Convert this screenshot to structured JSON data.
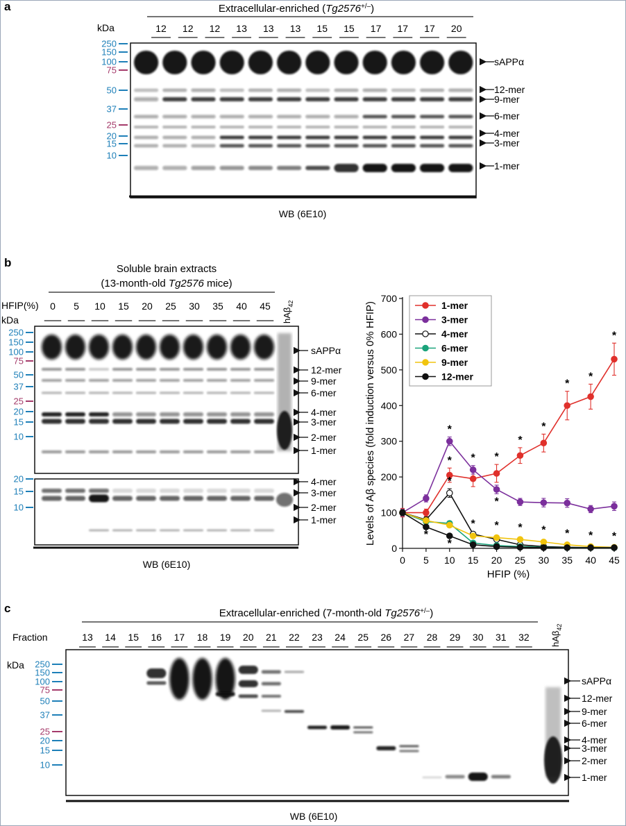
{
  "colors": {
    "marker_blue": "#1d7fb8",
    "marker_pink": "#a43a6a",
    "one_mer": "#e0302b",
    "three_mer": "#7b2f9c",
    "four_mer": "#ffffff",
    "six_mer": "#1aa37b",
    "nine_mer": "#f1c40f",
    "twelve_mer": "#111111"
  },
  "panel_a": {
    "letter": "a",
    "header_prefix": "Extracellular-enriched (",
    "header_italic": "Tg2576",
    "header_super": "+/–",
    "header_suffix": ")",
    "kda_label": "kDa",
    "lanes": [
      "12",
      "12",
      "12",
      "13",
      "13",
      "13",
      "15",
      "15",
      "17",
      "17",
      "17",
      "20"
    ],
    "markers": [
      {
        "label": "250",
        "color": "blue"
      },
      {
        "label": "150",
        "color": "blue"
      },
      {
        "label": "100",
        "color": "blue"
      },
      {
        "label": "75",
        "color": "pink"
      },
      {
        "label": "50",
        "color": "blue"
      },
      {
        "label": "37",
        "color": "blue"
      },
      {
        "label": "25",
        "color": "pink"
      },
      {
        "label": "20",
        "color": "blue"
      },
      {
        "label": "15",
        "color": "blue"
      },
      {
        "label": "10",
        "color": "blue"
      }
    ],
    "band_labels": [
      "sAPPα",
      "12-mer",
      "9-mer",
      "6-mer",
      "4-mer",
      "3-mer",
      "1-mer"
    ],
    "footer": "WB (6E10)"
  },
  "panel_b": {
    "letter": "b",
    "title_line1": "Soluble brain extracts",
    "title_line2_prefix": "(13-month-old ",
    "title_line2_italic": "Tg2576",
    "title_line2_suffix": " mice)",
    "hfip_label": "HFIP(%)",
    "kda_label": "kDa",
    "lanes": [
      "0",
      "5",
      "10",
      "15",
      "20",
      "25",
      "30",
      "35",
      "40",
      "45"
    ],
    "control_lane_base": "hAβ",
    "control_lane_sub": "42",
    "markers": [
      {
        "label": "250",
        "color": "blue"
      },
      {
        "label": "150",
        "color": "blue"
      },
      {
        "label": "100",
        "color": "blue"
      },
      {
        "label": "75",
        "color": "pink"
      },
      {
        "label": "50",
        "color": "blue"
      },
      {
        "label": "37",
        "color": "blue"
      },
      {
        "label": "25",
        "color": "pink"
      },
      {
        "label": "20",
        "color": "blue"
      },
      {
        "label": "15",
        "color": "blue"
      },
      {
        "label": "10",
        "color": "blue"
      }
    ],
    "lower_markers": [
      {
        "label": "20",
        "color": "blue"
      },
      {
        "label": "15",
        "color": "blue"
      },
      {
        "label": "10",
        "color": "blue"
      }
    ],
    "band_labels_upper": [
      "sAPPα",
      "12-mer",
      "9-mer",
      "6-mer",
      "4-mer",
      "3-mer",
      "2-mer",
      "1-mer"
    ],
    "band_labels_lower": [
      "4-mer",
      "3-mer",
      "2-mer",
      "1-mer"
    ],
    "footer": "WB (6E10)"
  },
  "chart_data": {
    "type": "line",
    "x": [
      0,
      5,
      10,
      15,
      20,
      25,
      30,
      35,
      40,
      45
    ],
    "xlabel": "HFIP (%)",
    "ylabel": "Levels of Aβ species (fold induction versus 0% HFIP)",
    "xlim": [
      0,
      45
    ],
    "ylim": [
      0,
      700
    ],
    "xticks": [
      "0",
      "5",
      "10",
      "15",
      "20",
      "25",
      "30",
      "35",
      "40",
      "45"
    ],
    "yticks": [
      "0",
      "100",
      "200",
      "300",
      "400",
      "500",
      "600",
      "700"
    ],
    "grid": false,
    "legend_position": "top-left",
    "series": [
      {
        "name": "1-mer",
        "color": "#e0302b",
        "filled": true,
        "values": [
          100,
          100,
          205,
          195,
          210,
          260,
          295,
          400,
          425,
          530
        ],
        "errors": [
          12,
          10,
          20,
          22,
          25,
          22,
          25,
          40,
          35,
          45
        ],
        "stars": [
          10,
          20,
          25,
          30,
          35,
          40,
          45
        ]
      },
      {
        "name": "3-mer",
        "color": "#7b2f9c",
        "filled": true,
        "values": [
          100,
          140,
          300,
          220,
          165,
          130,
          128,
          127,
          110,
          118
        ],
        "errors": [
          10,
          10,
          12,
          12,
          12,
          10,
          12,
          12,
          10,
          12
        ],
        "stars": [
          10,
          15,
          20
        ]
      },
      {
        "name": "4-mer",
        "color": "#ffffff",
        "filled": false,
        "values": [
          100,
          80,
          155,
          40,
          25,
          10,
          5,
          3,
          2,
          2
        ],
        "errors": [
          8,
          8,
          12,
          5,
          5,
          4,
          3,
          2,
          2,
          2
        ],
        "stars": [
          10
        ]
      },
      {
        "name": "6-mer",
        "color": "#1aa37b",
        "filled": true,
        "values": [
          100,
          75,
          70,
          15,
          8,
          5,
          3,
          2,
          2,
          2
        ],
        "errors": [
          8,
          6,
          6,
          4,
          3,
          3,
          2,
          2,
          2,
          2
        ],
        "stars": []
      },
      {
        "name": "9-mer",
        "color": "#f1c40f",
        "filled": true,
        "values": [
          100,
          78,
          65,
          35,
          30,
          25,
          18,
          10,
          5,
          3
        ],
        "errors": [
          8,
          6,
          6,
          5,
          5,
          4,
          4,
          3,
          2,
          2
        ],
        "stars": [
          15,
          20,
          25,
          30,
          35,
          40,
          45
        ]
      },
      {
        "name": "12-mer",
        "color": "#111111",
        "filled": true,
        "values": [
          100,
          60,
          35,
          10,
          5,
          3,
          2,
          2,
          2,
          2
        ],
        "errors": [
          8,
          6,
          5,
          3,
          2,
          2,
          2,
          2,
          2,
          2
        ],
        "stars": [
          5,
          10
        ]
      }
    ],
    "star_symbol": "*"
  },
  "panel_c": {
    "letter": "c",
    "header_prefix": "Extracellular-enriched (7-month-old ",
    "header_italic": "Tg2576",
    "header_super": "+/–",
    "header_suffix": ")",
    "fraction_label": "Fraction",
    "kda_label": "kDa",
    "lanes": [
      "13",
      "14",
      "15",
      "16",
      "17",
      "18",
      "19",
      "20",
      "21",
      "22",
      "23",
      "24",
      "25",
      "26",
      "27",
      "28",
      "29",
      "30",
      "31",
      "32"
    ],
    "control_lane_base": "hAβ",
    "control_lane_sub": "42",
    "markers": [
      {
        "label": "250",
        "color": "blue"
      },
      {
        "label": "150",
        "color": "blue"
      },
      {
        "label": "100",
        "color": "blue"
      },
      {
        "label": "75",
        "color": "pink"
      },
      {
        "label": "50",
        "color": "blue"
      },
      {
        "label": "37",
        "color": "blue"
      },
      {
        "label": "25",
        "color": "pink"
      },
      {
        "label": "20",
        "color": "blue"
      },
      {
        "label": "15",
        "color": "blue"
      },
      {
        "label": "10",
        "color": "blue"
      }
    ],
    "band_labels": [
      "sAPPα",
      "12-mer",
      "9-mer",
      "6-mer",
      "4-mer",
      "3-mer",
      "2-mer",
      "1-mer"
    ],
    "footer": "WB (6E10)"
  }
}
